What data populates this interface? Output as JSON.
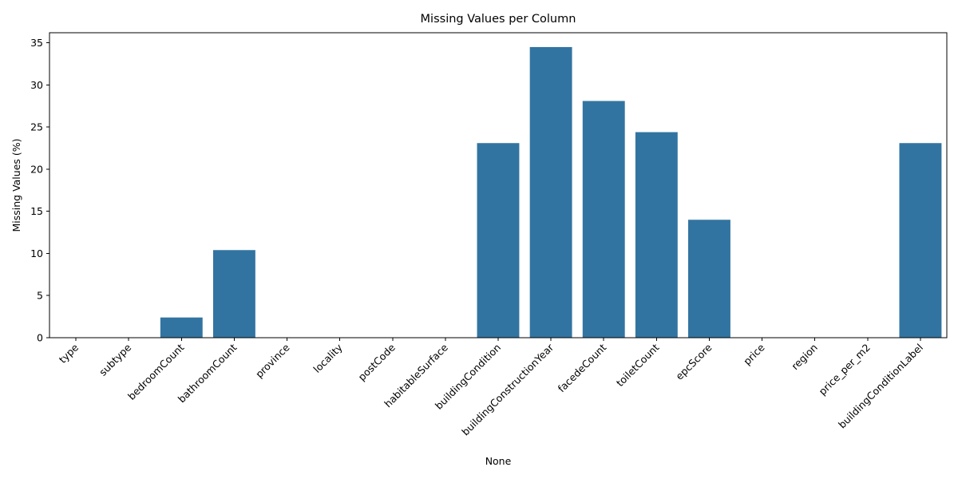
{
  "chart_data": {
    "type": "bar",
    "title": "Missing Values per Column",
    "xlabel": "None",
    "ylabel": "Missing Values (%)",
    "categories": [
      "type",
      "subtype",
      "bedroomCount",
      "bathroomCount",
      "province",
      "locality",
      "postCode",
      "habitableSurface",
      "buildingCondition",
      "buildingConstructionYear",
      "facedeCount",
      "toiletCount",
      "epcScore",
      "price",
      "region",
      "price_per_m2",
      "buildingConditionLabel"
    ],
    "values": [
      0,
      0,
      2.4,
      10.4,
      0,
      0,
      0,
      0,
      23.1,
      34.5,
      28.1,
      24.4,
      14.0,
      0,
      0,
      0,
      23.1
    ],
    "ylim": [
      0,
      36.2
    ],
    "yticks": [
      0,
      5,
      10,
      15,
      20,
      25,
      30,
      35
    ],
    "grid": false,
    "bar_color": "#3274a1"
  }
}
